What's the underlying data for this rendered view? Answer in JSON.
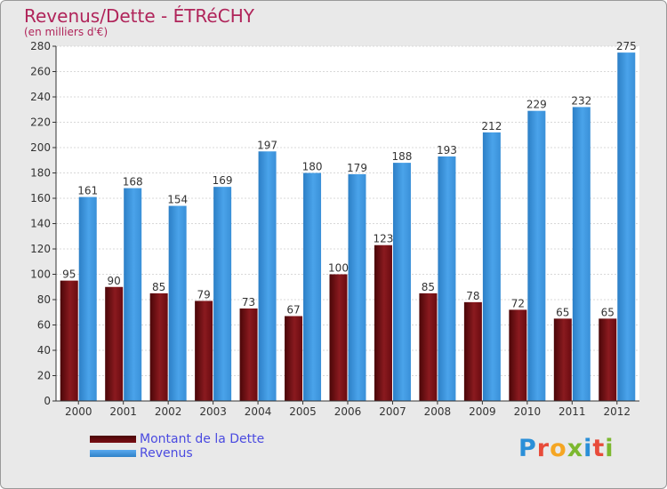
{
  "chart_data": {
    "type": "bar",
    "title": "Revenus/Dette - ÉTRéCHY",
    "subtitle": "(en milliers d'€)",
    "categories": [
      "2000",
      "2001",
      "2002",
      "2003",
      "2004",
      "2005",
      "2006",
      "2007",
      "2008",
      "2009",
      "2010",
      "2011",
      "2012"
    ],
    "series": [
      {
        "name": "Montant de la Dette",
        "color": "#7a0f14",
        "values": [
          95,
          90,
          85,
          79,
          73,
          67,
          100,
          123,
          85,
          78,
          72,
          65,
          65
        ]
      },
      {
        "name": "Revenus",
        "color": "#3d95dc",
        "values": [
          161,
          168,
          154,
          169,
          197,
          180,
          179,
          188,
          193,
          212,
          229,
          232,
          275
        ]
      }
    ],
    "ylim": [
      0,
      280
    ],
    "ytick_step": 20,
    "grid": true,
    "legend": "bottom-left"
  },
  "branding": {
    "logo_letters": [
      "P",
      "r",
      "o",
      "x",
      "i",
      "t",
      "i"
    ]
  }
}
